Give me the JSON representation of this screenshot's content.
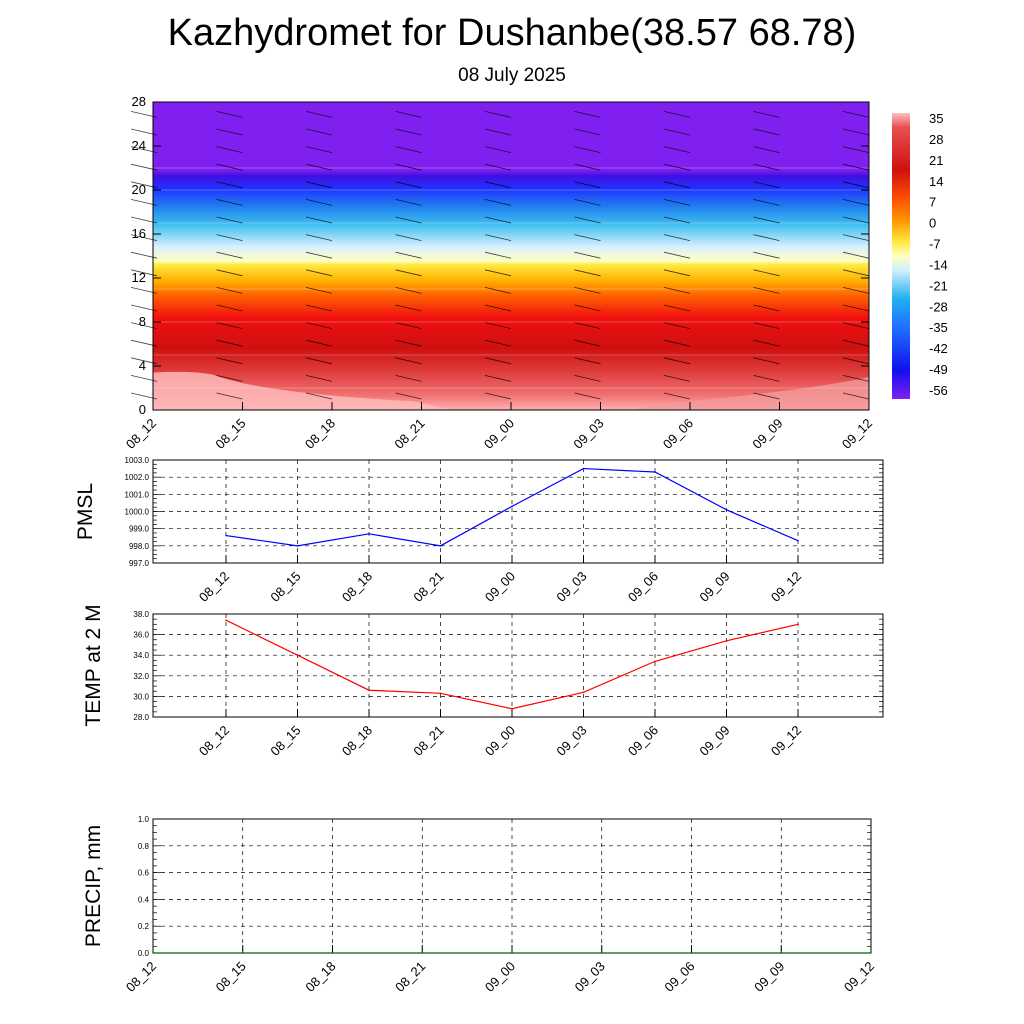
{
  "title": "Kazhydromet for Dushanbe(38.57 68.78)",
  "subtitle": "08 July 2025",
  "colors": {
    "pmsl_line": "#0000ff",
    "temp_line": "#ff0000",
    "precip_line": "#006400",
    "grid": "#000000"
  },
  "chart_data": [
    {
      "type": "heatmap",
      "name": "vertical cross-section",
      "x_ticks": [
        "08_12",
        "08_15",
        "08_18",
        "08_21",
        "09_00",
        "09_03",
        "09_06",
        "09_09",
        "09_12"
      ],
      "y_ticks": [
        "0",
        "4",
        "8",
        "12",
        "16",
        "20",
        "24",
        "28"
      ],
      "ylim": [
        0,
        28
      ],
      "colorbar_labels": [
        "35",
        "28",
        "21",
        "14",
        "7",
        "0",
        "-7",
        "-14",
        "-21",
        "-28",
        "-35",
        "-42",
        "-49",
        "-56"
      ],
      "bands": [
        {
          "from": 0,
          "to": 2,
          "value": 35
        },
        {
          "from": 2,
          "to": 5,
          "value": 30
        },
        {
          "from": 5,
          "to": 8,
          "value": 21
        },
        {
          "from": 8,
          "to": 11,
          "value": 7
        },
        {
          "from": 11,
          "to": 13.5,
          "value": -7
        },
        {
          "from": 13.5,
          "to": 17,
          "value": -21
        },
        {
          "from": 17,
          "to": 20,
          "value": -42
        },
        {
          "from": 20,
          "to": 22,
          "value": -56
        },
        {
          "from": 22,
          "to": 28,
          "value": -60
        }
      ]
    },
    {
      "type": "line",
      "ylabel": "PMSL",
      "x": [
        "08_12",
        "08_15",
        "08_18",
        "08_21",
        "09_00",
        "09_03",
        "09_06",
        "09_09",
        "09_12"
      ],
      "y_ticks": [
        "997.0",
        "998.0",
        "999.0",
        "1000.0",
        "1001.0",
        "1002.0",
        "1003.0"
      ],
      "ylim": [
        997.0,
        1003.0
      ],
      "values": [
        998.6,
        998.0,
        998.7,
        998.0,
        1000.3,
        1002.5,
        1002.3,
        1000.1,
        998.3
      ]
    },
    {
      "type": "line",
      "ylabel": "TEMP at 2 M",
      "x": [
        "08_12",
        "08_15",
        "08_18",
        "08_21",
        "09_00",
        "09_03",
        "09_06",
        "09_09",
        "09_12"
      ],
      "y_ticks": [
        "28.0",
        "30.0",
        "32.0",
        "34.0",
        "36.0",
        "38.0"
      ],
      "ylim": [
        28.0,
        38.0
      ],
      "values": [
        37.4,
        34.0,
        30.6,
        30.3,
        28.8,
        30.4,
        33.4,
        35.4,
        37.0
      ]
    },
    {
      "type": "line",
      "ylabel": "PRECIP, mm",
      "x": [
        "08_12",
        "08_15",
        "08_18",
        "08_21",
        "09_00",
        "09_03",
        "09_06",
        "09_09",
        "09_12"
      ],
      "y_ticks": [
        "0.0",
        "0.2",
        "0.4",
        "0.6",
        "0.8",
        "1.0"
      ],
      "ylim": [
        0.0,
        1.0
      ],
      "values": [
        0,
        0,
        0,
        0,
        0,
        0,
        0,
        0,
        0
      ]
    }
  ]
}
